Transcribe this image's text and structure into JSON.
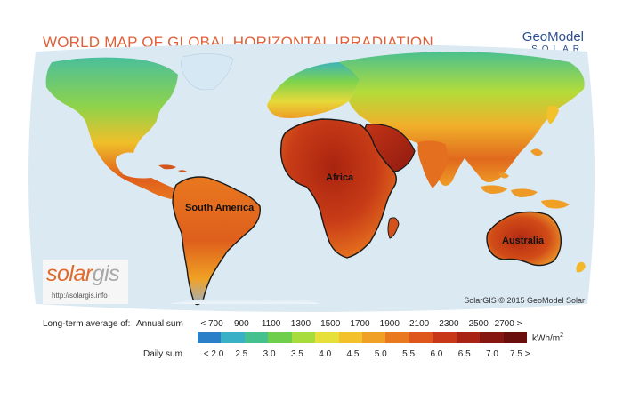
{
  "title": "WORLD MAP OF GLOBAL HORIZONTAL IRRADIATION",
  "brand": {
    "main": "GeoModel",
    "sub": "SOLAR"
  },
  "logo": {
    "part1": "solar",
    "part2": "gis",
    "url": "http://solargis.info"
  },
  "credit": "SolarGIS © 2015 GeoModel Solar",
  "regions": {
    "south_america": "South America",
    "africa": "Africa",
    "australia": "Australia"
  },
  "legend": {
    "caption": "Long-term average of:",
    "annual_label": "Annual sum",
    "daily_label": "Daily sum",
    "annual_ticks": [
      "< 700",
      "900",
      "1100",
      "1300",
      "1500",
      "1700",
      "1900",
      "2100",
      "2300",
      "2500",
      "2700 >"
    ],
    "daily_ticks": [
      "< 2.0",
      "2.5",
      "3.0",
      "3.5",
      "4.0",
      "4.5",
      "5.0",
      "5.5",
      "6.0",
      "6.5",
      "7.0",
      "7.5 >"
    ],
    "unit": "kWh/m",
    "unit_sup": "2",
    "colors": [
      "#2b7fc8",
      "#3ab0c6",
      "#45c18f",
      "#6fcf4c",
      "#a8dc3c",
      "#e6e13a",
      "#f3c22a",
      "#f0a125",
      "#e9781f",
      "#de561b",
      "#c83717",
      "#a82313",
      "#861610",
      "#6b0f0d"
    ]
  }
}
